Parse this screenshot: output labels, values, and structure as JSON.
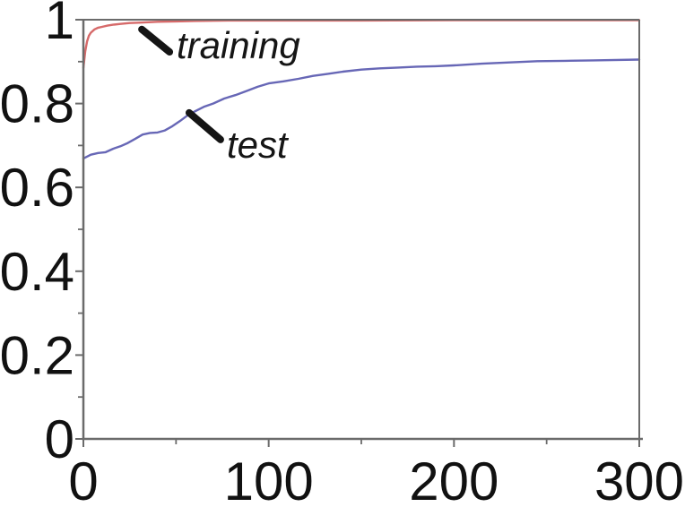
{
  "figure": {
    "background": "#ffffff",
    "description": "Learning curves: accuracy vs. iterations for training and test sets"
  },
  "chart_data": {
    "type": "line",
    "title": "",
    "xlabel": "",
    "ylabel": "",
    "xlim": [
      0,
      300
    ],
    "ylim": [
      0,
      1
    ],
    "grid": false,
    "legend_position": "inline-annotations",
    "axis_color": "#6b6b6b",
    "text_color": "#111111",
    "x_major_ticks": [
      0,
      100,
      200,
      300
    ],
    "x_major_tick_labels": [
      "0",
      "100",
      "200",
      "300"
    ],
    "x_minor_ticks": [
      50,
      150,
      250
    ],
    "y_major_ticks": [
      0,
      0.2,
      0.4,
      0.6,
      0.8,
      1
    ],
    "y_major_tick_labels": [
      "0",
      "0.2",
      "0.4",
      "0.6",
      "0.8",
      "1"
    ],
    "y_minor_ticks": [
      0.1,
      0.3,
      0.5,
      0.7,
      0.9
    ],
    "series": [
      {
        "name": "training",
        "color": "#d66a6a",
        "points": [
          [
            0,
            0.885
          ],
          [
            1,
            0.925
          ],
          [
            2,
            0.948
          ],
          [
            3,
            0.962
          ],
          [
            4,
            0.969
          ],
          [
            6,
            0.977
          ],
          [
            8,
            0.981
          ],
          [
            10,
            0.983
          ],
          [
            13,
            0.986
          ],
          [
            16,
            0.988
          ],
          [
            20,
            0.99
          ],
          [
            25,
            0.992
          ],
          [
            30,
            0.993
          ],
          [
            40,
            0.995
          ],
          [
            50,
            0.996
          ],
          [
            60,
            0.997
          ],
          [
            80,
            0.998
          ],
          [
            100,
            0.998
          ],
          [
            150,
            0.998
          ],
          [
            200,
            0.999
          ],
          [
            250,
            0.999
          ],
          [
            300,
            0.999
          ]
        ]
      },
      {
        "name": "test",
        "color": "#6767b6",
        "points": [
          [
            0,
            0.669
          ],
          [
            4,
            0.678
          ],
          [
            8,
            0.682
          ],
          [
            12,
            0.684
          ],
          [
            16,
            0.692
          ],
          [
            20,
            0.698
          ],
          [
            24,
            0.706
          ],
          [
            28,
            0.716
          ],
          [
            32,
            0.726
          ],
          [
            36,
            0.73
          ],
          [
            40,
            0.731
          ],
          [
            44,
            0.736
          ],
          [
            48,
            0.746
          ],
          [
            52,
            0.758
          ],
          [
            56,
            0.771
          ],
          [
            60,
            0.781
          ],
          [
            65,
            0.792
          ],
          [
            70,
            0.8
          ],
          [
            76,
            0.812
          ],
          [
            82,
            0.82
          ],
          [
            88,
            0.83
          ],
          [
            94,
            0.84
          ],
          [
            100,
            0.848
          ],
          [
            108,
            0.853
          ],
          [
            116,
            0.859
          ],
          [
            124,
            0.866
          ],
          [
            132,
            0.871
          ],
          [
            140,
            0.876
          ],
          [
            150,
            0.881
          ],
          [
            160,
            0.884
          ],
          [
            170,
            0.886
          ],
          [
            180,
            0.888
          ],
          [
            190,
            0.889
          ],
          [
            200,
            0.891
          ],
          [
            215,
            0.895
          ],
          [
            230,
            0.898
          ],
          [
            245,
            0.901
          ],
          [
            260,
            0.902
          ],
          [
            275,
            0.903
          ],
          [
            300,
            0.905
          ]
        ]
      }
    ],
    "annotations": [
      {
        "label": "training",
        "color": "#151515",
        "pointer_from": [
          31.5,
          0.977
        ],
        "pointer_to": [
          46.5,
          0.923
        ],
        "text_pos": [
          50.3,
          0.908
        ]
      },
      {
        "label": "test",
        "color": "#151515",
        "pointer_from": [
          57.1,
          0.778
        ],
        "pointer_to": [
          74.0,
          0.714
        ],
        "text_pos": [
          77.4,
          0.671
        ]
      }
    ]
  }
}
